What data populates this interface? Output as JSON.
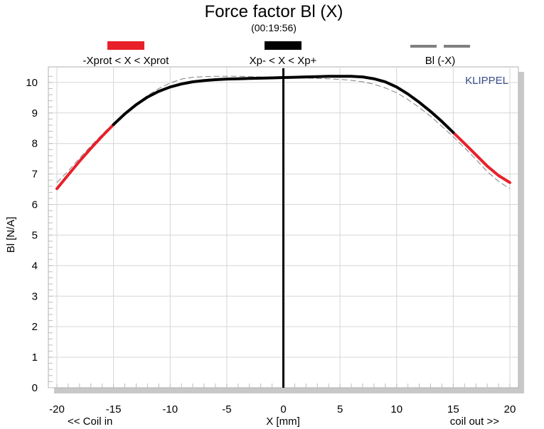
{
  "chart_data": {
    "type": "line",
    "title": "Force factor Bl (X)",
    "subtitle": "(00:19:56)",
    "xlabel": "X [mm]",
    "ylabel": "Bl [N/A]",
    "x_left_note": "<< Coil in",
    "x_right_note": "coil out >>",
    "watermark": "KLIPPEL",
    "xlim": [
      -20,
      20
    ],
    "ylim": [
      0,
      10.3
    ],
    "x_ticks": [
      "-20",
      "-15",
      "-10",
      "-5",
      "0",
      "5",
      "10",
      "15",
      "20"
    ],
    "y_ticks": [
      "0",
      "1",
      "2",
      "3",
      "4",
      "5",
      "6",
      "7",
      "8",
      "9",
      "10"
    ],
    "grid": true,
    "legend": [
      {
        "label": "-Xprot < X < Xprot",
        "color": "#e8202a",
        "style": "solid"
      },
      {
        "label": "Xp- < X < Xp+",
        "color": "#000000",
        "style": "solid"
      },
      {
        "label": "Bl (-X)",
        "color": "#808080",
        "style": "dashed"
      }
    ],
    "vertical_marker_x": 0,
    "series": [
      {
        "name": "Bl (X)",
        "x": [
          -20,
          -19,
          -18,
          -17,
          -16,
          -15,
          -14,
          -13,
          -12,
          -11,
          -10,
          -9,
          -8,
          -7,
          -6,
          -5,
          -4,
          -3,
          -2,
          -1,
          0,
          1,
          2,
          3,
          4,
          5,
          6,
          7,
          8,
          9,
          10,
          11,
          12,
          13,
          14,
          15,
          16,
          17,
          18,
          19,
          20
        ],
        "y": [
          6.52,
          6.97,
          7.42,
          7.84,
          8.24,
          8.62,
          8.97,
          9.27,
          9.52,
          9.71,
          9.85,
          9.95,
          10.02,
          10.06,
          10.09,
          10.11,
          10.12,
          10.13,
          10.14,
          10.15,
          10.16,
          10.17,
          10.18,
          10.19,
          10.2,
          10.2,
          10.2,
          10.18,
          10.12,
          10.02,
          9.85,
          9.62,
          9.35,
          9.05,
          8.72,
          8.36,
          8.0,
          7.63,
          7.26,
          6.95,
          6.72
        ],
        "xprot_range": [
          -15,
          15
        ]
      },
      {
        "name": "Bl (-X)",
        "x": [
          -20,
          -19,
          -18,
          -17,
          -16,
          -15,
          -14,
          -13,
          -12,
          -11,
          -10,
          -9,
          -8,
          -7,
          -6,
          -5,
          -4,
          -3,
          -2,
          -1,
          0,
          1,
          2,
          3,
          4,
          5,
          6,
          7,
          8,
          9,
          10,
          11,
          12,
          13,
          14,
          15,
          16,
          17,
          18,
          19,
          20
        ],
        "y": [
          6.72,
          7.1,
          7.52,
          7.92,
          8.3,
          8.66,
          9.0,
          9.3,
          9.57,
          9.8,
          9.98,
          10.11,
          10.17,
          10.19,
          10.2,
          10.2,
          10.2,
          10.19,
          10.18,
          10.17,
          10.16,
          10.15,
          10.14,
          10.13,
          10.12,
          10.1,
          10.07,
          10.02,
          9.94,
          9.82,
          9.66,
          9.44,
          9.18,
          8.89,
          8.56,
          8.22,
          7.86,
          7.48,
          7.08,
          6.76,
          6.52
        ]
      }
    ]
  }
}
